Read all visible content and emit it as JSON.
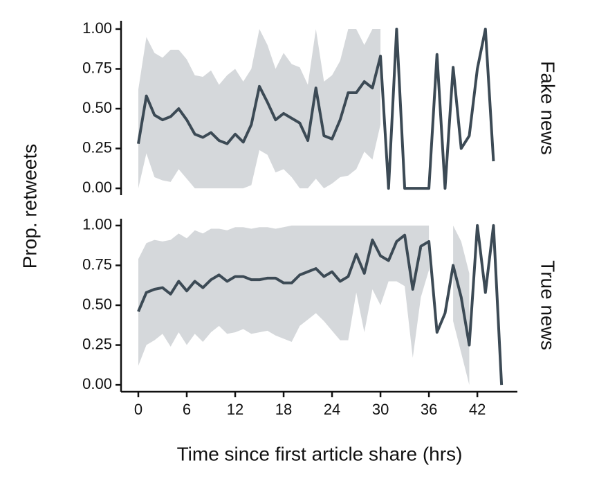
{
  "chart_data": [
    {
      "type": "line",
      "facet_label": "Fake news",
      "ylabel": "Prop. retweets",
      "x": [
        0,
        1,
        2,
        3,
        4,
        5,
        6,
        7,
        8,
        9,
        10,
        11,
        12,
        13,
        14,
        15,
        16,
        17,
        18,
        19,
        20,
        21,
        22,
        23,
        24,
        25,
        26,
        27,
        28,
        29,
        30,
        31,
        32,
        33,
        34,
        35,
        36,
        37,
        38,
        39,
        40,
        41,
        42,
        43,
        44
      ],
      "series": [
        {
          "color": "#3c4a55",
          "band_color": "#d5d8db",
          "values": [
            0.28,
            0.58,
            0.46,
            0.43,
            0.45,
            0.5,
            0.43,
            0.34,
            0.32,
            0.35,
            0.3,
            0.28,
            0.34,
            0.29,
            0.4,
            0.64,
            0.54,
            0.43,
            0.47,
            0.44,
            0.41,
            0.3,
            0.63,
            0.33,
            0.31,
            0.43,
            0.6,
            0.6,
            0.67,
            0.63,
            0.83,
            0,
            1,
            0,
            0,
            0,
            0,
            0.84,
            0,
            0.76,
            0.25,
            0.33,
            0.75,
            1,
            0.17
          ],
          "upper": [
            0.62,
            0.95,
            0.85,
            0.82,
            0.87,
            0.87,
            0.81,
            0.71,
            0.7,
            0.74,
            0.65,
            0.71,
            0.75,
            0.67,
            0.75,
            1,
            0.9,
            0.75,
            0.85,
            0.78,
            0.76,
            0.65,
            1,
            0.67,
            0.71,
            0.8,
            1,
            1,
            0.9,
            1,
            1,
            null,
            null,
            null,
            null,
            null,
            null,
            null,
            null,
            null,
            null,
            null,
            null,
            null,
            null
          ],
          "lower": [
            0,
            0.22,
            0.07,
            0.05,
            0.04,
            0.12,
            0.06,
            0,
            0,
            0,
            0,
            0,
            0,
            0,
            0.02,
            0.24,
            0.21,
            0.1,
            0.12,
            0.07,
            0,
            0,
            0.06,
            0,
            0.03,
            0.07,
            0.08,
            0.12,
            0.23,
            0.18,
            0.4,
            null,
            null,
            null,
            null,
            null,
            null,
            null,
            null,
            null,
            null,
            null,
            null,
            null,
            null
          ]
        }
      ],
      "xlim": [
        -2.14,
        46.96
      ],
      "ylim": [
        -0.043,
        1.052
      ],
      "yticks": [
        {
          "value": 0,
          "label": "0.00"
        },
        {
          "value": 0.25,
          "label": "0.25"
        },
        {
          "value": 0.5,
          "label": "0.50"
        },
        {
          "value": 0.75,
          "label": "0.75"
        },
        {
          "value": 1,
          "label": "1.00"
        }
      ]
    },
    {
      "type": "line",
      "facet_label": "True news",
      "xlabel": "Time since first article share (hrs)",
      "x": [
        0,
        1,
        2,
        3,
        4,
        5,
        6,
        7,
        8,
        9,
        10,
        11,
        12,
        13,
        14,
        15,
        16,
        17,
        18,
        19,
        20,
        21,
        22,
        23,
        24,
        25,
        26,
        27,
        28,
        29,
        30,
        31,
        32,
        33,
        34,
        35,
        36,
        37,
        38,
        39,
        40,
        41,
        42,
        43,
        44,
        45
      ],
      "series": [
        {
          "color": "#3c4a55",
          "band_color": "#d5d8db",
          "values": [
            0.46,
            0.58,
            0.6,
            0.61,
            0.57,
            0.65,
            0.59,
            0.65,
            0.61,
            0.66,
            0.69,
            0.65,
            0.68,
            0.68,
            0.66,
            0.66,
            0.67,
            0.67,
            0.64,
            0.64,
            0.69,
            0.71,
            0.73,
            0.68,
            0.71,
            0.65,
            0.68,
            0.82,
            0.7,
            0.91,
            0.81,
            0.78,
            0.9,
            0.94,
            0.6,
            0.87,
            0.9,
            0.33,
            0.45,
            0.75,
            0.55,
            0.25,
            1,
            0.58,
            1,
            0
          ],
          "upper": [
            0.79,
            0.89,
            0.91,
            0.9,
            0.91,
            0.95,
            0.92,
            0.97,
            0.95,
            0.98,
            0.98,
            0.97,
            0.99,
            0.99,
            0.98,
            0.99,
            0.99,
            0.98,
            0.99,
            1,
            1,
            1,
            1,
            1,
            1,
            1,
            1,
            1,
            1,
            1,
            1,
            1,
            1,
            1,
            1,
            1,
            1,
            null,
            null,
            1,
            0.9,
            0.7,
            null,
            null,
            null,
            null
          ],
          "lower": [
            0.12,
            0.25,
            0.28,
            0.32,
            0.24,
            0.33,
            0.25,
            0.32,
            0.27,
            0.33,
            0.37,
            0.32,
            0.33,
            0.35,
            0.32,
            0.33,
            0.34,
            0.31,
            0.29,
            0.27,
            0.37,
            0.41,
            0.45,
            0.4,
            0.34,
            0.28,
            0.28,
            0.58,
            0.33,
            0.6,
            0.5,
            0.65,
            0.65,
            0.62,
            0.17,
            0.55,
            0.72,
            null,
            null,
            0.4,
            0.2,
            0,
            null,
            null,
            null,
            null
          ]
        }
      ],
      "xlim": [
        -2.14,
        46.96
      ],
      "ylim": [
        -0.043,
        1.043
      ],
      "xticks": [
        0,
        6,
        12,
        18,
        24,
        30,
        36,
        42
      ],
      "yticks": [
        {
          "value": 0,
          "label": "0.00"
        },
        {
          "value": 0.25,
          "label": "0.25"
        },
        {
          "value": 0.5,
          "label": "0.50"
        },
        {
          "value": 0.75,
          "label": "0.75"
        },
        {
          "value": 1,
          "label": "1.00"
        }
      ]
    }
  ]
}
